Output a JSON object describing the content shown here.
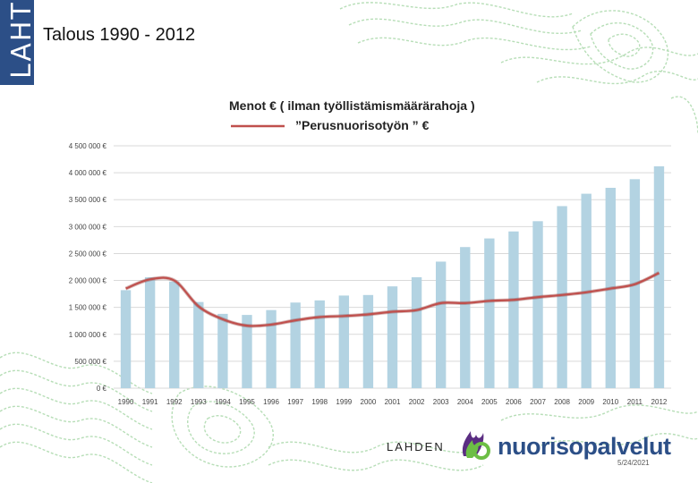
{
  "logo": {
    "text": "LAHTI"
  },
  "slide": {
    "title": "Talous 1990 - 2012",
    "date": "5/24/2021"
  },
  "brand": {
    "prefix": "LAHDEN",
    "name": "nuorisopalvelut"
  },
  "colors": {
    "bar": "#b3d3e2",
    "line": "#c0504d",
    "grid": "#d9d9d9",
    "logo_bg": "#2c4f87",
    "deco": "#9fd39f"
  },
  "chart_data": {
    "type": "bar",
    "title": "Menot € ( ilman työllistämismäärärahoja )",
    "legend": [
      {
        "name": "”Perusnuorisotyön ” €",
        "marker": "line"
      }
    ],
    "categories": [
      "1990",
      "1991",
      "1992",
      "1993",
      "1994",
      "1995",
      "1996",
      "1997",
      "1998",
      "1999",
      "2000",
      "2001",
      "2002",
      "2003",
      "2004",
      "2005",
      "2006",
      "2007",
      "2008",
      "2009",
      "2010",
      "2011",
      "2012"
    ],
    "series": [
      {
        "name": "Menot €",
        "type": "bar",
        "values": [
          1820000,
          2060000,
          1980000,
          1600000,
          1380000,
          1360000,
          1450000,
          1590000,
          1630000,
          1720000,
          1730000,
          1890000,
          2060000,
          2350000,
          2620000,
          2780000,
          2910000,
          3100000,
          3380000,
          3610000,
          3720000,
          3880000,
          4120000
        ]
      },
      {
        "name": "”Perusnuorisotyön ” €",
        "type": "line",
        "values": [
          1850000,
          2020000,
          2000000,
          1520000,
          1280000,
          1160000,
          1180000,
          1260000,
          1320000,
          1340000,
          1370000,
          1420000,
          1450000,
          1580000,
          1580000,
          1620000,
          1640000,
          1690000,
          1730000,
          1780000,
          1850000,
          1930000,
          2140000
        ]
      }
    ],
    "ylim": [
      0,
      4500000
    ],
    "yticks": [
      0,
      500000,
      1000000,
      1500000,
      2000000,
      2500000,
      3000000,
      3500000,
      4000000,
      4500000
    ],
    "ytick_labels": [
      "0 €",
      "500 000 €",
      "1 000 000 €",
      "1 500 000 €",
      "2 000 000 €",
      "2 500 000 €",
      "3 000 000 €",
      "3 500 000 €",
      "4 000 000 €",
      "4 500 000 €"
    ],
    "grid": true,
    "legend_position": "top"
  }
}
